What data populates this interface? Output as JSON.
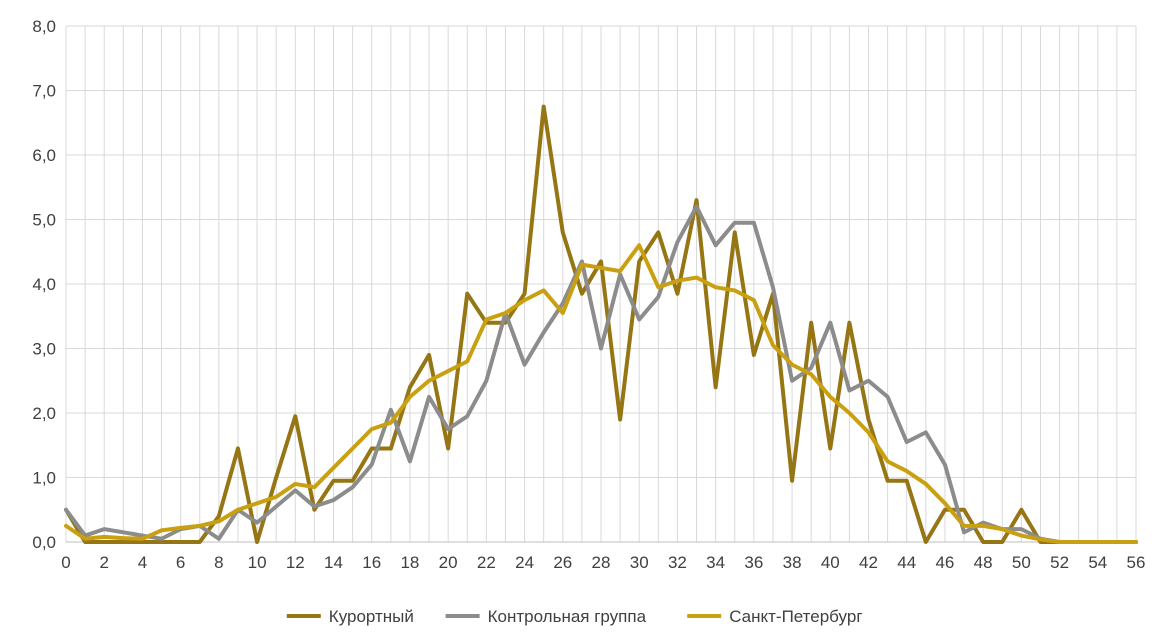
{
  "chart_data": {
    "type": "line",
    "x": [
      0,
      1,
      2,
      3,
      4,
      5,
      6,
      7,
      8,
      9,
      10,
      11,
      12,
      13,
      14,
      15,
      16,
      17,
      18,
      19,
      20,
      21,
      22,
      23,
      24,
      25,
      26,
      27,
      28,
      29,
      30,
      31,
      32,
      33,
      34,
      35,
      36,
      37,
      38,
      39,
      40,
      41,
      42,
      43,
      44,
      45,
      46,
      47,
      48,
      49,
      50,
      51,
      52,
      53,
      54,
      55,
      56
    ],
    "x_tick_labels": [
      "0",
      "2",
      "4",
      "6",
      "8",
      "10",
      "12",
      "14",
      "16",
      "18",
      "20",
      "22",
      "24",
      "26",
      "28",
      "30",
      "32",
      "34",
      "36",
      "38",
      "40",
      "42",
      "44",
      "46",
      "48",
      "50",
      "52",
      "54",
      "56"
    ],
    "y_tick_labels": [
      "0,0",
      "1,0",
      "2,0",
      "3,0",
      "4,0",
      "5,0",
      "6,0",
      "7,0",
      "8,0"
    ],
    "xlim": [
      0,
      56
    ],
    "ylim": [
      0,
      8
    ],
    "grid": true,
    "legend_position": "bottom",
    "series": [
      {
        "name": "Курортный",
        "color": "#967514",
        "values": [
          0.5,
          0.0,
          0.0,
          0.0,
          0.0,
          0.0,
          0.0,
          0.0,
          0.4,
          1.45,
          0.0,
          1.0,
          1.95,
          0.5,
          0.95,
          0.95,
          1.45,
          1.45,
          2.4,
          2.9,
          1.45,
          3.85,
          3.4,
          3.4,
          3.85,
          6.75,
          4.8,
          3.85,
          4.35,
          1.9,
          4.35,
          4.8,
          3.85,
          5.3,
          2.4,
          4.8,
          2.9,
          3.85,
          0.95,
          3.4,
          1.45,
          3.4,
          1.9,
          0.95,
          0.95,
          0.0,
          0.5,
          0.5,
          0.0,
          0.0,
          0.5,
          0.0,
          0.0,
          0.0,
          0.0,
          0.0,
          0.0
        ]
      },
      {
        "name": "Контрольная группа",
        "color": "#8c8c8c",
        "values": [
          0.5,
          0.1,
          0.2,
          0.15,
          0.1,
          0.05,
          0.2,
          0.25,
          0.05,
          0.5,
          0.3,
          0.55,
          0.8,
          0.55,
          0.65,
          0.85,
          1.2,
          2.05,
          1.25,
          2.25,
          1.75,
          1.95,
          2.5,
          3.55,
          2.75,
          3.25,
          3.7,
          4.35,
          3.0,
          4.15,
          3.45,
          3.8,
          4.65,
          5.2,
          4.6,
          4.95,
          4.95,
          3.95,
          2.5,
          2.7,
          3.4,
          2.35,
          2.5,
          2.25,
          1.55,
          1.7,
          1.2,
          0.15,
          0.3,
          0.2,
          0.2,
          0.05,
          0.0,
          0.0,
          0.0,
          0.0,
          0.0
        ]
      },
      {
        "name": "Санкт-Петербург",
        "color": "#c9a011",
        "values": [
          0.25,
          0.05,
          0.08,
          0.06,
          0.05,
          0.18,
          0.22,
          0.25,
          0.32,
          0.5,
          0.6,
          0.7,
          0.9,
          0.85,
          1.15,
          1.45,
          1.75,
          1.85,
          2.25,
          2.5,
          2.65,
          2.8,
          3.45,
          3.55,
          3.75,
          3.9,
          3.55,
          4.3,
          4.25,
          4.2,
          4.6,
          3.95,
          4.05,
          4.1,
          3.95,
          3.9,
          3.75,
          3.05,
          2.75,
          2.6,
          2.25,
          2.0,
          1.7,
          1.25,
          1.1,
          0.9,
          0.6,
          0.25,
          0.25,
          0.2,
          0.1,
          0.04,
          0.0,
          0.0,
          0.0,
          0.0,
          0.0
        ]
      }
    ]
  }
}
